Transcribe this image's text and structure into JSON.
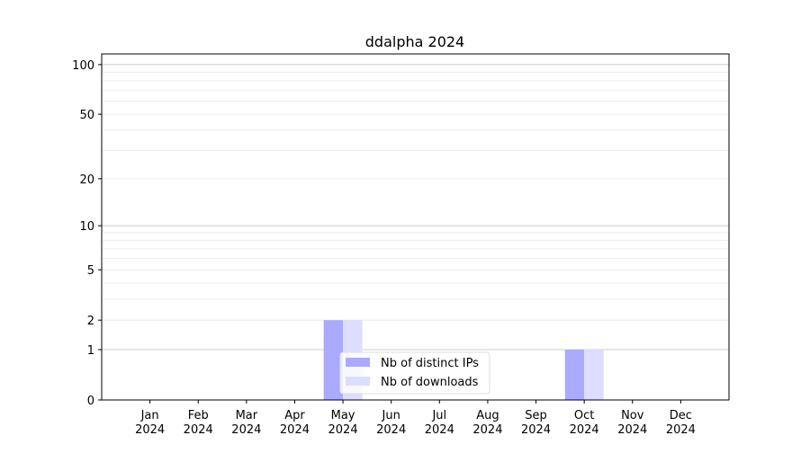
{
  "chart_data": {
    "type": "bar",
    "title": "ddalpha 2024",
    "xlabel": "",
    "ylabel": "",
    "categories": [
      "Jan\n2024",
      "Feb\n2024",
      "Mar\n2024",
      "Apr\n2024",
      "May\n2024",
      "Jun\n2024",
      "Jul\n2024",
      "Aug\n2024",
      "Sep\n2024",
      "Oct\n2024",
      "Nov\n2024",
      "Dec\n2024"
    ],
    "series": [
      {
        "name": "Nb of distinct IPs",
        "color": "#aaaaff",
        "values": [
          0,
          0,
          0,
          0,
          2,
          0,
          0,
          0,
          0,
          1,
          0,
          0
        ]
      },
      {
        "name": "Nb of downloads",
        "color": "#ddddff",
        "values": [
          0,
          0,
          0,
          0,
          2,
          0,
          0,
          0,
          0,
          1,
          0,
          0
        ]
      }
    ],
    "yscale": "log(1+y)",
    "yticks": [
      0,
      1,
      2,
      5,
      10,
      20,
      50,
      100
    ],
    "ylim": [
      0,
      116
    ],
    "grid": true,
    "legend": "bottom-center"
  }
}
